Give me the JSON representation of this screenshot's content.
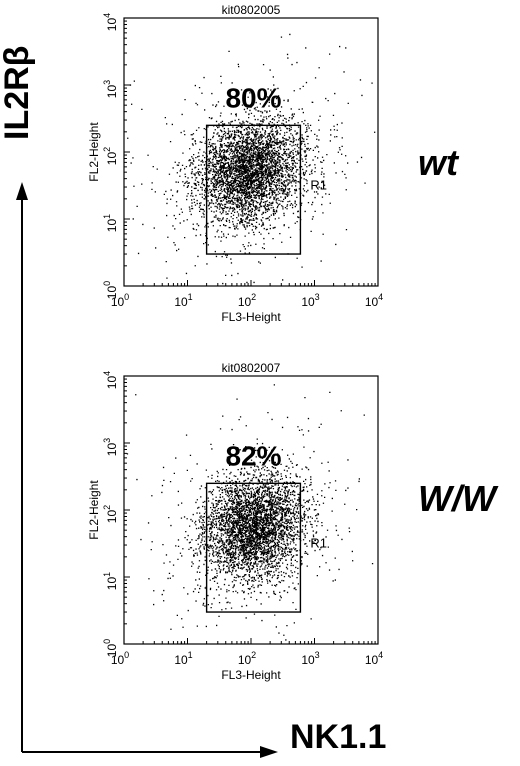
{
  "figure": {
    "y_axis_title": "IL2Rβ",
    "x_axis_title": "NK1.1"
  },
  "chart_data": [
    {
      "type": "scatter",
      "title": "kit0802005",
      "group_label": "wt",
      "xlabel": "FL3-Height",
      "ylabel": "FL2-Height",
      "xscale": "log",
      "yscale": "log",
      "xlim": [
        1,
        10000
      ],
      "ylim": [
        1,
        10000
      ],
      "x_ticks": [
        1,
        10,
        100,
        1000,
        10000
      ],
      "y_ticks": [
        1,
        10,
        100,
        1000,
        10000
      ],
      "tick_base": "10",
      "tick_exponents": [
        "0",
        "1",
        "2",
        "3",
        "4"
      ],
      "gate": {
        "name": "R1",
        "x_range": [
          20,
          600
        ],
        "y_range": [
          3,
          250
        ],
        "percent_label": "80%",
        "percent": 80
      },
      "population": {
        "center_x": 95,
        "center_y": 55,
        "spread_x_decades": 0.42,
        "spread_y_decades": 0.38,
        "approx_events": 4000
      },
      "grid": false,
      "legend": "none"
    },
    {
      "type": "scatter",
      "title": "kit0802007",
      "group_label": "W/W",
      "xlabel": "FL3-Height",
      "ylabel": "FL2-Height",
      "xscale": "log",
      "yscale": "log",
      "xlim": [
        1,
        10000
      ],
      "ylim": [
        1,
        10000
      ],
      "x_ticks": [
        1,
        10,
        100,
        1000,
        10000
      ],
      "y_ticks": [
        1,
        10,
        100,
        1000,
        10000
      ],
      "tick_base": "10",
      "tick_exponents": [
        "0",
        "1",
        "2",
        "3",
        "4"
      ],
      "gate": {
        "name": "R1",
        "x_range": [
          20,
          600
        ],
        "y_range": [
          3,
          250
        ],
        "percent_label": "82%",
        "percent": 82
      },
      "population": {
        "center_x": 110,
        "center_y": 60,
        "spread_x_decades": 0.4,
        "spread_y_decades": 0.4,
        "approx_events": 4000
      },
      "grid": false,
      "legend": "none"
    }
  ]
}
